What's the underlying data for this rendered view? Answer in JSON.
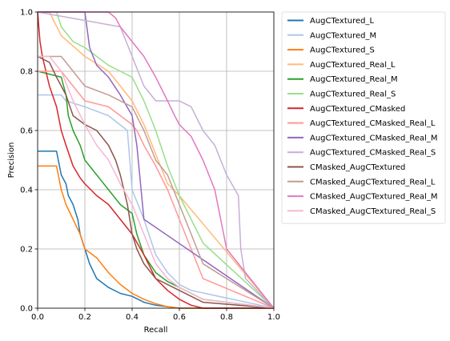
{
  "chart_data": {
    "type": "line",
    "title": "",
    "xlabel": "Recall",
    "ylabel": "Precision",
    "xlim": [
      0,
      1
    ],
    "ylim": [
      0,
      1
    ],
    "xticks": [
      "0.0",
      "0.2",
      "0.4",
      "0.6",
      "0.8",
      "1.0"
    ],
    "yticks": [
      "0.0",
      "0.2",
      "0.4",
      "0.6",
      "0.8",
      "1.0"
    ],
    "grid": true,
    "legend_position": "outside-right",
    "series": [
      {
        "name": "AugCTextured_L",
        "color": "#1f77b4",
        "x": [
          0,
          0.08,
          0.1,
          0.12,
          0.13,
          0.15,
          0.17,
          0.18,
          0.2,
          0.22,
          0.25,
          0.3,
          0.35,
          0.4,
          0.45,
          0.5,
          0.55,
          0.6,
          1.0
        ],
        "y": [
          0.53,
          0.53,
          0.45,
          0.42,
          0.38,
          0.35,
          0.3,
          0.25,
          0.2,
          0.15,
          0.1,
          0.07,
          0.05,
          0.04,
          0.02,
          0.01,
          0.005,
          0.0,
          0.0
        ]
      },
      {
        "name": "AugCTextured_M",
        "color": "#aec7e8",
        "x": [
          0,
          0.1,
          0.12,
          0.2,
          0.3,
          0.38,
          0.4,
          0.45,
          0.5,
          0.55,
          0.6,
          0.65,
          1.0
        ],
        "y": [
          0.72,
          0.72,
          0.7,
          0.68,
          0.65,
          0.6,
          0.4,
          0.3,
          0.18,
          0.12,
          0.08,
          0.06,
          0.0
        ]
      },
      {
        "name": "AugCTextured_S",
        "color": "#ff7f0e",
        "x": [
          0,
          0.08,
          0.1,
          0.12,
          0.15,
          0.18,
          0.2,
          0.25,
          0.3,
          0.35,
          0.4,
          0.45,
          0.5,
          0.55,
          0.6,
          1.0
        ],
        "y": [
          0.48,
          0.48,
          0.4,
          0.35,
          0.3,
          0.25,
          0.2,
          0.17,
          0.12,
          0.08,
          0.05,
          0.03,
          0.015,
          0.005,
          0.0,
          0.0
        ]
      },
      {
        "name": "AugCTextured_Real_L",
        "color": "#ffbb78",
        "x": [
          0,
          0.05,
          0.1,
          0.2,
          0.3,
          0.35,
          0.4,
          0.45,
          0.5,
          0.55,
          0.6,
          1.0
        ],
        "y": [
          1.0,
          1.0,
          0.92,
          0.85,
          0.8,
          0.75,
          0.7,
          0.62,
          0.52,
          0.42,
          0.38,
          0.0
        ]
      },
      {
        "name": "AugCTextured_Real_M",
        "color": "#2ca02c",
        "x": [
          0,
          0.1,
          0.12,
          0.13,
          0.15,
          0.18,
          0.2,
          0.25,
          0.3,
          0.35,
          0.4,
          0.42,
          0.45,
          0.5,
          0.55,
          0.6,
          0.65,
          0.7,
          1.0
        ],
        "y": [
          0.8,
          0.78,
          0.72,
          0.65,
          0.6,
          0.55,
          0.5,
          0.45,
          0.4,
          0.35,
          0.32,
          0.25,
          0.18,
          0.12,
          0.09,
          0.07,
          0.05,
          0.03,
          0.0
        ]
      },
      {
        "name": "AugCTextured_Real_S",
        "color": "#98df8a",
        "x": [
          0,
          0.08,
          0.1,
          0.15,
          0.2,
          0.25,
          0.3,
          0.35,
          0.4,
          0.45,
          0.5,
          0.55,
          0.6,
          0.65,
          0.7,
          1.0
        ],
        "y": [
          1.0,
          1.0,
          0.95,
          0.9,
          0.88,
          0.85,
          0.82,
          0.8,
          0.78,
          0.7,
          0.6,
          0.48,
          0.38,
          0.3,
          0.22,
          0.0
        ]
      },
      {
        "name": "AugCTextured_CMasked",
        "color": "#d62728",
        "x": [
          0,
          0.01,
          0.02,
          0.05,
          0.08,
          0.1,
          0.12,
          0.15,
          0.18,
          0.2,
          0.25,
          0.3,
          0.35,
          0.4,
          0.45,
          0.5,
          0.55,
          0.6,
          0.65,
          0.7,
          1.0
        ],
        "y": [
          1.0,
          0.9,
          0.85,
          0.75,
          0.68,
          0.6,
          0.55,
          0.48,
          0.44,
          0.42,
          0.38,
          0.35,
          0.3,
          0.25,
          0.18,
          0.1,
          0.06,
          0.03,
          0.01,
          0.0,
          0.0
        ]
      },
      {
        "name": "AugCTextured_CMasked_Real_L",
        "color": "#ff9896",
        "x": [
          0,
          0.1,
          0.15,
          0.2,
          0.3,
          0.35,
          0.4,
          0.42,
          0.45,
          0.5,
          0.55,
          0.6,
          0.65,
          0.7,
          1.0
        ],
        "y": [
          0.8,
          0.8,
          0.75,
          0.7,
          0.68,
          0.65,
          0.62,
          0.6,
          0.55,
          0.48,
          0.4,
          0.3,
          0.2,
          0.1,
          0.0
        ]
      },
      {
        "name": "AugCTextured_CMasked_Real_M",
        "color": "#9467bd",
        "x": [
          0,
          0.2,
          0.22,
          0.25,
          0.3,
          0.35,
          0.4,
          0.42,
          0.45,
          1.0
        ],
        "y": [
          1.0,
          1.0,
          0.88,
          0.82,
          0.78,
          0.72,
          0.65,
          0.55,
          0.3,
          0.0
        ]
      },
      {
        "name": "AugCTextured_CMasked_Real_S",
        "color": "#c5b0d5",
        "x": [
          0,
          0.35,
          0.4,
          0.45,
          0.5,
          0.55,
          0.6,
          0.65,
          0.7,
          0.75,
          0.8,
          0.85,
          0.86,
          0.88,
          1.0
        ],
        "y": [
          1.0,
          0.95,
          0.85,
          0.75,
          0.7,
          0.7,
          0.7,
          0.68,
          0.6,
          0.55,
          0.45,
          0.38,
          0.2,
          0.1,
          0.0
        ]
      },
      {
        "name": "CMasked_AugCTextured",
        "color": "#8c564b",
        "x": [
          0,
          0.05,
          0.08,
          0.1,
          0.12,
          0.15,
          0.2,
          0.25,
          0.3,
          0.33,
          0.35,
          0.38,
          0.4,
          0.42,
          0.45,
          0.5,
          0.55,
          0.6,
          0.65,
          0.7,
          1.0
        ],
        "y": [
          0.85,
          0.83,
          0.78,
          0.75,
          0.72,
          0.65,
          0.62,
          0.6,
          0.55,
          0.5,
          0.45,
          0.35,
          0.25,
          0.2,
          0.15,
          0.1,
          0.08,
          0.06,
          0.04,
          0.02,
          0.0
        ]
      },
      {
        "name": "CMasked_AugCTextured_Real_L",
        "color": "#c49c94",
        "x": [
          0,
          0.1,
          0.15,
          0.2,
          0.3,
          0.4,
          0.45,
          0.5,
          0.55,
          0.6,
          0.65,
          0.7,
          1.0
        ],
        "y": [
          0.85,
          0.85,
          0.8,
          0.75,
          0.72,
          0.68,
          0.6,
          0.5,
          0.45,
          0.35,
          0.25,
          0.15,
          0.0
        ]
      },
      {
        "name": "CMasked_AugCTextured_Real_M",
        "color": "#e377c2",
        "x": [
          0,
          0.1,
          0.2,
          0.3,
          0.33,
          0.35,
          0.4,
          0.45,
          0.5,
          0.55,
          0.58,
          0.6,
          0.65,
          0.7,
          0.75,
          0.8,
          1.0
        ],
        "y": [
          1.0,
          1.0,
          1.0,
          1.0,
          0.98,
          0.95,
          0.9,
          0.85,
          0.78,
          0.7,
          0.65,
          0.62,
          0.58,
          0.5,
          0.4,
          0.2,
          0.0
        ]
      },
      {
        "name": "CMasked_AugCTextured_Real_S",
        "color": "#f7b6d2",
        "x": [
          0,
          0.05,
          0.1,
          0.15,
          0.2,
          0.25,
          0.3,
          0.35,
          0.4,
          0.45,
          0.5,
          0.55,
          0.6,
          0.65,
          0.7,
          1.0
        ],
        "y": [
          0.85,
          0.85,
          0.8,
          0.7,
          0.62,
          0.55,
          0.5,
          0.42,
          0.35,
          0.25,
          0.15,
          0.1,
          0.07,
          0.05,
          0.03,
          0.0
        ]
      }
    ]
  }
}
